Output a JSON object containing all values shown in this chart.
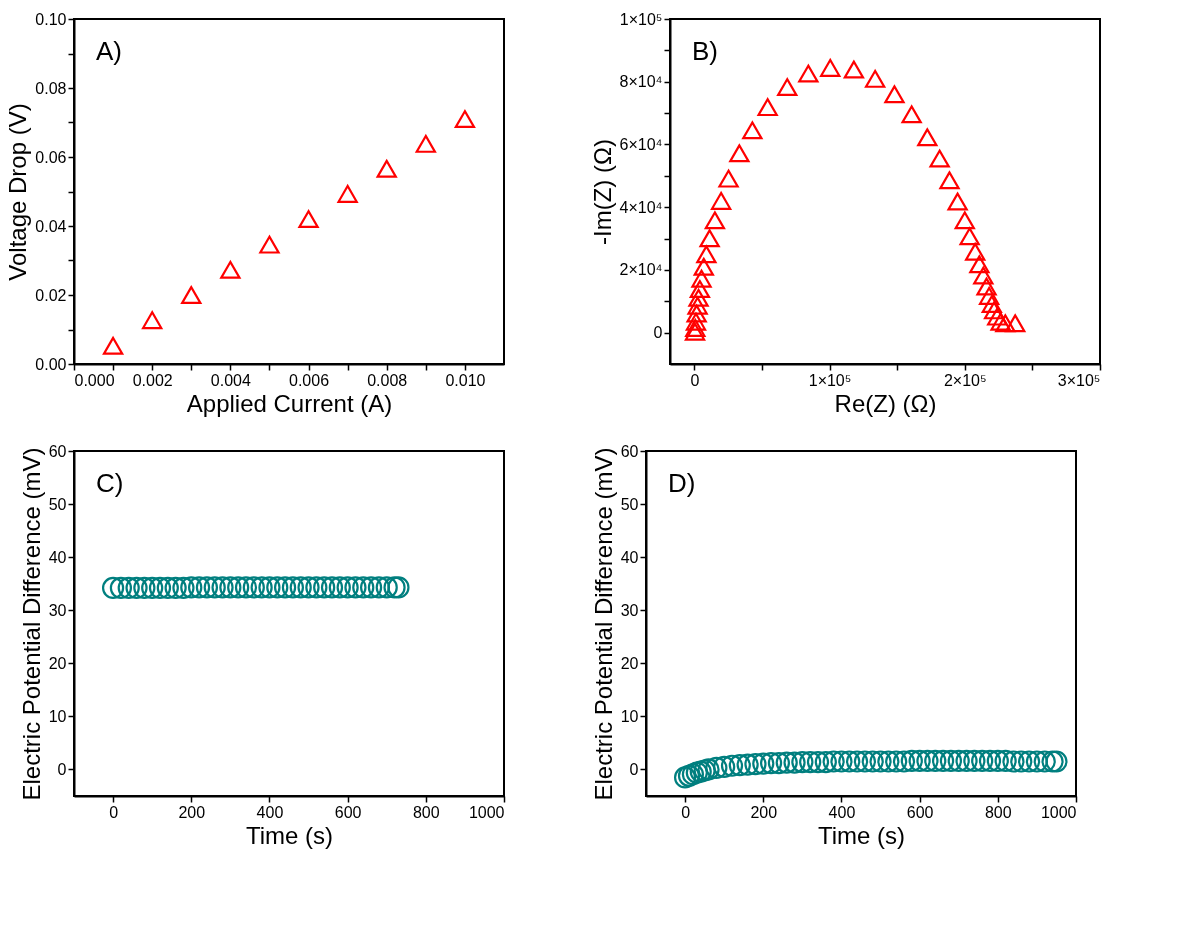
{
  "chart_data": [
    {
      "type": "scatter",
      "xlabel": "Applied Current (A)",
      "ylabel": "Voltage Drop (V)",
      "annotations": [
        "A)"
      ],
      "marker": "triangle",
      "grid": false,
      "xlim": [
        0,
        0.011
      ],
      "ylim": [
        0,
        0.1
      ],
      "xticks": [
        {
          "value": 0,
          "label": "0.000"
        },
        {
          "value": 0.001,
          "label": null
        },
        {
          "value": 0.002,
          "label": "0.002"
        },
        {
          "value": 0.003,
          "label": null
        },
        {
          "value": 0.004,
          "label": "0.004"
        },
        {
          "value": 0.005,
          "label": null
        },
        {
          "value": 0.006,
          "label": "0.006"
        },
        {
          "value": 0.007,
          "label": null
        },
        {
          "value": 0.008,
          "label": "0.008"
        },
        {
          "value": 0.009,
          "label": null
        },
        {
          "value": 0.01,
          "label": "0.010"
        }
      ],
      "yticks": [
        {
          "value": 0,
          "label": "0.00"
        },
        {
          "value": 0.01,
          "label": null
        },
        {
          "value": 0.02,
          "label": "0.02"
        },
        {
          "value": 0.03,
          "label": null
        },
        {
          "value": 0.04,
          "label": "0.04"
        },
        {
          "value": 0.05,
          "label": null
        },
        {
          "value": 0.06,
          "label": "0.06"
        },
        {
          "value": 0.07,
          "label": null
        },
        {
          "value": 0.08,
          "label": "0.08"
        },
        {
          "value": 0.09,
          "label": null
        },
        {
          "value": 0.1,
          "label": "0.10"
        }
      ],
      "series": [
        {
          "color": "#ff0000",
          "x": [
            0.001,
            0.002,
            0.003,
            0.004,
            0.005,
            0.006,
            0.007,
            0.008,
            0.009,
            0.01
          ],
          "values": [
            0.0053,
            0.0127,
            0.02,
            0.0273,
            0.0346,
            0.042,
            0.0493,
            0.0566,
            0.0638,
            0.071
          ]
        }
      ]
    },
    {
      "type": "scatter",
      "xlabel": "Re(Z) (Ω)",
      "ylabel": "-Im(Z) (Ω)",
      "annotations": [
        "B)"
      ],
      "marker": "triangle",
      "grid": false,
      "xlim": [
        -18000,
        300000
      ],
      "ylim": [
        -10000,
        100000
      ],
      "xticks": [
        {
          "value": 0,
          "label": "0"
        },
        {
          "value": 50000,
          "label": null
        },
        {
          "value": 100000,
          "label": "1×10⁵"
        },
        {
          "value": 150000,
          "label": null
        },
        {
          "value": 200000,
          "label": "2×10⁵"
        },
        {
          "value": 250000,
          "label": null
        },
        {
          "value": 300000,
          "label": "3×10⁵"
        }
      ],
      "yticks": [
        {
          "value": 0,
          "label": "0"
        },
        {
          "value": 10000,
          "label": null
        },
        {
          "value": 20000,
          "label": "2×10⁴"
        },
        {
          "value": 30000,
          "label": null
        },
        {
          "value": 40000,
          "label": "4×10⁴"
        },
        {
          "value": 50000,
          "label": null
        },
        {
          "value": 60000,
          "label": "6×10⁴"
        },
        {
          "value": 70000,
          "label": null
        },
        {
          "value": 80000,
          "label": "8×10⁴"
        },
        {
          "value": 90000,
          "label": null
        },
        {
          "value": 100000,
          "label": "1×10⁵"
        }
      ],
      "series": [
        {
          "color": "#ff0000",
          "x": [
            500,
            700,
            1200,
            1700,
            2400,
            3100,
            4100,
            5300,
            7000,
            8900,
            11300,
            15200,
            19800,
            25300,
            33300,
            42900,
            54200,
            68700,
            84300,
            100500,
            118000,
            133700,
            148000,
            160700,
            172300,
            181400,
            188700,
            194700,
            200000,
            203600,
            207700,
            210800,
            213700,
            216100,
            218000,
            220000,
            221700,
            224000,
            226500,
            230000,
            237300
          ],
          "values": [
            300,
            1500,
            3500,
            6100,
            8600,
            11100,
            13900,
            17200,
            21000,
            25000,
            30100,
            35800,
            42000,
            49100,
            57200,
            64500,
            71900,
            78300,
            82600,
            84400,
            83900,
            80900,
            76000,
            69600,
            62300,
            55500,
            48600,
            41800,
            35800,
            30700,
            25800,
            21800,
            18200,
            14700,
            11700,
            9100,
            7100,
            5100,
            3500,
            3000,
            3000
          ]
        }
      ]
    },
    {
      "type": "scatter",
      "xlabel": "Time (s)",
      "ylabel": "Electric Potential Difference (mV)",
      "annotations": [
        "C)"
      ],
      "marker": "circle",
      "grid": false,
      "xlim": [
        -100,
        1000
      ],
      "ylim": [
        -5,
        60
      ],
      "xticks": [
        0,
        200,
        400,
        600,
        800,
        1000
      ],
      "yticks": [
        0,
        10,
        20,
        30,
        40,
        50,
        60
      ],
      "series": [
        {
          "color": "#007f7f",
          "x": [
            0,
            20,
            40,
            60,
            80,
            100,
            120,
            140,
            160,
            180,
            200,
            220,
            240,
            260,
            280,
            300,
            320,
            340,
            360,
            380,
            400,
            420,
            440,
            460,
            480,
            500,
            520,
            540,
            560,
            580,
            600,
            620,
            640,
            660,
            680,
            700,
            720,
            730
          ],
          "values": [
            34.2,
            34.2,
            34.2,
            34.2,
            34.2,
            34.2,
            34.2,
            34.2,
            34.2,
            34.2,
            34.3,
            34.3,
            34.3,
            34.3,
            34.3,
            34.3,
            34.3,
            34.3,
            34.3,
            34.3,
            34.3,
            34.3,
            34.3,
            34.3,
            34.3,
            34.3,
            34.3,
            34.3,
            34.3,
            34.3,
            34.3,
            34.3,
            34.3,
            34.3,
            34.3,
            34.3,
            34.3,
            34.3
          ]
        }
      ]
    },
    {
      "type": "scatter",
      "xlabel": "Time (s)",
      "ylabel": "Electric Potential Difference (mV)",
      "annotations": [
        "D)"
      ],
      "marker": "circle",
      "grid": false,
      "xlim": [
        -100,
        1000
      ],
      "ylim": [
        -5,
        60
      ],
      "xticks": [
        0,
        200,
        400,
        600,
        800,
        1000
      ],
      "yticks": [
        0,
        10,
        20,
        30,
        40,
        50,
        60
      ],
      "series": [
        {
          "color": "#007f7f",
          "x": [
            0,
            10,
            20,
            30,
            40,
            50,
            60,
            80,
            100,
            120,
            140,
            160,
            180,
            200,
            220,
            240,
            260,
            280,
            300,
            320,
            340,
            360,
            380,
            400,
            420,
            440,
            460,
            480,
            500,
            520,
            540,
            560,
            580,
            600,
            620,
            640,
            660,
            680,
            700,
            720,
            740,
            760,
            780,
            800,
            820,
            840,
            860,
            880,
            900,
            920,
            940,
            950
          ],
          "values": [
            -1.5,
            -1.2,
            -0.9,
            -0.6,
            -0.4,
            -0.2,
            0.0,
            0.3,
            0.5,
            0.7,
            0.8,
            0.9,
            1.0,
            1.1,
            1.2,
            1.2,
            1.3,
            1.3,
            1.4,
            1.4,
            1.4,
            1.4,
            1.5,
            1.5,
            1.5,
            1.5,
            1.5,
            1.5,
            1.5,
            1.5,
            1.5,
            1.5,
            1.6,
            1.6,
            1.6,
            1.6,
            1.6,
            1.6,
            1.6,
            1.6,
            1.6,
            1.6,
            1.6,
            1.6,
            1.6,
            1.5,
            1.5,
            1.5,
            1.5,
            1.5,
            1.5,
            1.5
          ]
        }
      ]
    }
  ]
}
